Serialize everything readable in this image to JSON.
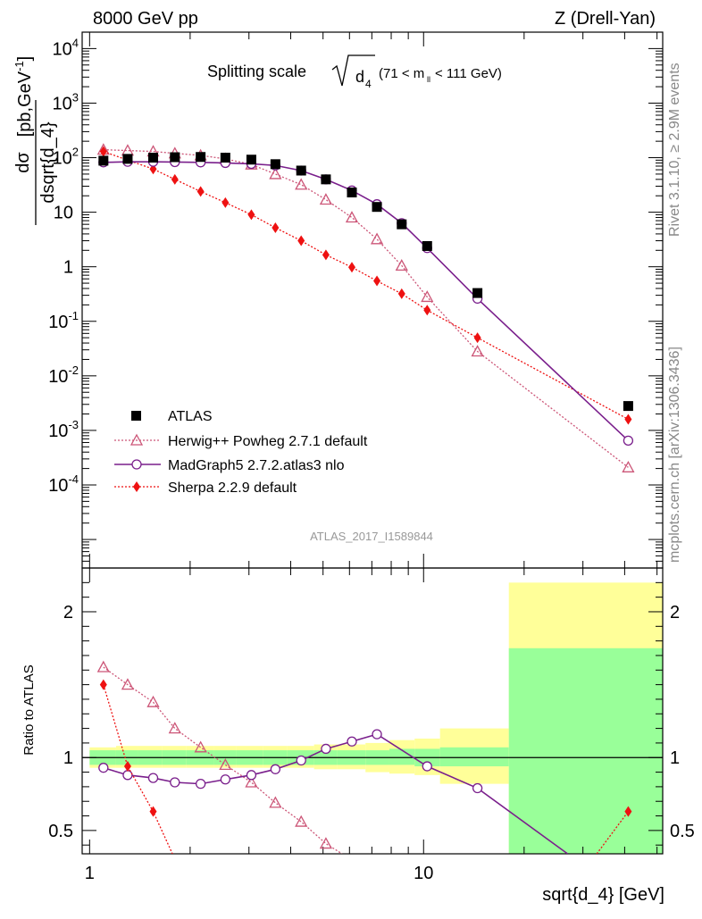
{
  "header": {
    "left": "8000 GeV pp",
    "right": "Z (Drell-Yan)"
  },
  "side_labels": {
    "rivet": "Rivet 3.1.10, ≥ 2.9M events",
    "mcplots": "mcplots.cern.ch [arXiv:1306.3436]"
  },
  "analysis_id": "ATLAS_2017_I1589844",
  "colors": {
    "atlas": "#000000",
    "herwig": "#cc5577",
    "madgraph": "#7a1f8c",
    "sherpa": "#ee1111",
    "band_green": "#99ff99",
    "band_yellow": "#ffff99"
  },
  "chart_data": [
    {
      "type": "scatter",
      "title": "Splitting scale √d4 (71 < mℓℓ < 111 GeV)",
      "title_parts": {
        "main": "Splitting scale",
        "var": "d",
        "sub": "4",
        "cut": "(71 < m",
        "cut_sub": "ll",
        "cut_end": " < 111 GeV)"
      },
      "ylabel": "dσ / dsqrt{d_4} [pb,GeV⁻¹]",
      "ylabel_parts": {
        "num": "dσ",
        "den": "dsqrt{d_4}",
        "unit": "[pb,GeV",
        "unit_sup": "-1",
        "unit_end": "]"
      },
      "x_log": true,
      "y_log": true,
      "xlim": [
        0.95,
        52
      ],
      "ylim": [
        3e-06,
        20000
      ],
      "y_ticks": [
        {
          "v": 0.0001,
          "base": "10",
          "exp": "-4"
        },
        {
          "v": 0.001,
          "base": "10",
          "exp": "-3"
        },
        {
          "v": 0.01,
          "base": "10",
          "exp": "-2"
        },
        {
          "v": 0.1,
          "base": "10",
          "exp": "-1"
        },
        {
          "v": 1,
          "base": "1",
          "exp": ""
        },
        {
          "v": 10,
          "base": "10",
          "exp": ""
        },
        {
          "v": 100,
          "base": "10",
          "exp": "2"
        },
        {
          "v": 1000,
          "base": "10",
          "exp": "3"
        },
        {
          "v": 10000,
          "base": "10",
          "exp": "4"
        }
      ],
      "legend_position": "lower-left",
      "series": [
        {
          "name": "ATLAS",
          "marker": "square",
          "x": [
            1.1,
            1.3,
            1.55,
            1.8,
            2.15,
            2.55,
            3.05,
            3.6,
            4.3,
            5.1,
            6.1,
            7.25,
            8.6,
            10.25,
            14.5,
            41.0
          ],
          "y": [
            88,
            95,
            100,
            102,
            103,
            100,
            92,
            76,
            58,
            40,
            23,
            12.5,
            6.0,
            2.4,
            0.33,
            0.0028
          ]
        },
        {
          "name": "Herwig++ Powheg 2.7.1 default",
          "marker": "triangle",
          "style": "dotted",
          "x": [
            1.1,
            1.3,
            1.55,
            1.8,
            2.15,
            2.55,
            3.05,
            3.6,
            4.3,
            5.1,
            6.1,
            7.25,
            8.6,
            10.25,
            14.5,
            41.0
          ],
          "y": [
            140,
            135,
            130,
            120,
            110,
            95,
            75,
            50,
            32,
            17,
            8.0,
            3.2,
            1.05,
            0.28,
            0.028,
            0.00021
          ]
        },
        {
          "name": "MadGraph5 2.7.2.atlas3 nlo",
          "marker": "circle",
          "style": "solid",
          "x": [
            1.1,
            1.3,
            1.55,
            1.8,
            2.15,
            2.55,
            3.05,
            3.6,
            4.3,
            5.1,
            6.1,
            7.25,
            8.6,
            10.25,
            14.5,
            41.0
          ],
          "y": [
            82,
            84,
            84,
            83,
            82,
            80,
            77,
            72,
            58,
            40,
            25,
            14,
            6.3,
            2.2,
            0.26,
            0.00065
          ]
        },
        {
          "name": "Sherpa 2.2.9 default",
          "marker": "diamond",
          "style": "dotted",
          "x": [
            1.1,
            1.3,
            1.55,
            1.8,
            2.15,
            2.55,
            3.05,
            3.6,
            4.3,
            5.1,
            6.1,
            7.25,
            8.6,
            10.25,
            14.5,
            41.0
          ],
          "y": [
            130,
            90,
            62,
            40,
            24,
            15,
            9.0,
            5.2,
            3.0,
            1.65,
            0.98,
            0.55,
            0.32,
            0.16,
            0.05,
            0.0016
          ]
        }
      ]
    },
    {
      "type": "line",
      "ylabel": "Ratio to ATLAS",
      "xlabel": "sqrt{d_4} [GeV]",
      "x_log": true,
      "xlim": [
        0.95,
        52
      ],
      "ylim": [
        0.34,
        2.3
      ],
      "y_ticks": [
        0.5,
        1,
        2
      ],
      "y_tick_labels": [
        "0.5",
        "1",
        "2"
      ],
      "x_ticks": [
        1,
        10
      ],
      "x_tick_labels": [
        "1",
        "10"
      ],
      "bands": {
        "bin_edges": [
          1.0,
          1.2,
          1.4,
          1.65,
          1.95,
          2.35,
          2.75,
          3.3,
          3.9,
          4.7,
          5.5,
          6.7,
          7.9,
          9.4,
          11.2,
          18.0,
          52.0
        ],
        "green_low": [
          0.95,
          0.95,
          0.95,
          0.95,
          0.95,
          0.95,
          0.95,
          0.95,
          0.95,
          0.95,
          0.95,
          0.95,
          0.95,
          0.94,
          0.94,
          0.34
        ],
        "green_high": [
          1.05,
          1.05,
          1.05,
          1.05,
          1.05,
          1.05,
          1.05,
          1.05,
          1.05,
          1.05,
          1.05,
          1.05,
          1.06,
          1.06,
          1.07,
          1.75
        ],
        "yellow_low": [
          0.93,
          0.93,
          0.93,
          0.93,
          0.93,
          0.93,
          0.93,
          0.93,
          0.93,
          0.92,
          0.92,
          0.9,
          0.89,
          0.88,
          0.82,
          0.34
        ],
        "yellow_high": [
          1.07,
          1.08,
          1.08,
          1.08,
          1.08,
          1.08,
          1.08,
          1.08,
          1.08,
          1.09,
          1.09,
          1.1,
          1.12,
          1.13,
          1.2,
          2.2
        ]
      },
      "series": [
        {
          "name": "Herwig++ Powheg 2.7.1 default",
          "x": [
            1.1,
            1.3,
            1.55,
            1.8,
            2.15,
            2.55,
            3.05,
            3.6,
            4.3,
            5.1
          ],
          "y": [
            1.62,
            1.5,
            1.38,
            1.2,
            1.07,
            0.95,
            0.83,
            0.69,
            0.56,
            0.41
          ],
          "tail_to": [
            5.7,
            0.34
          ]
        },
        {
          "name": "MadGraph5 2.7.2.atlas3 nlo",
          "x": [
            1.1,
            1.3,
            1.55,
            1.8,
            2.15,
            2.55,
            3.05,
            3.6,
            4.3,
            5.1,
            6.1,
            7.25,
            10.25,
            14.5
          ],
          "y": [
            0.93,
            0.88,
            0.86,
            0.83,
            0.82,
            0.85,
            0.88,
            0.92,
            0.98,
            1.06,
            1.11,
            1.16,
            0.94,
            0.79
          ],
          "tail_to": [
            27.0,
            0.34
          ]
        },
        {
          "name": "Sherpa 2.2.9 default",
          "x": [
            1.1,
            1.3,
            1.55
          ],
          "y": [
            1.5,
            0.94,
            0.63
          ],
          "tail_to": [
            1.77,
            0.34
          ],
          "last": {
            "x": 41.0,
            "y": 0.63,
            "from": [
              33.0,
              0.34
            ]
          }
        }
      ]
    }
  ]
}
